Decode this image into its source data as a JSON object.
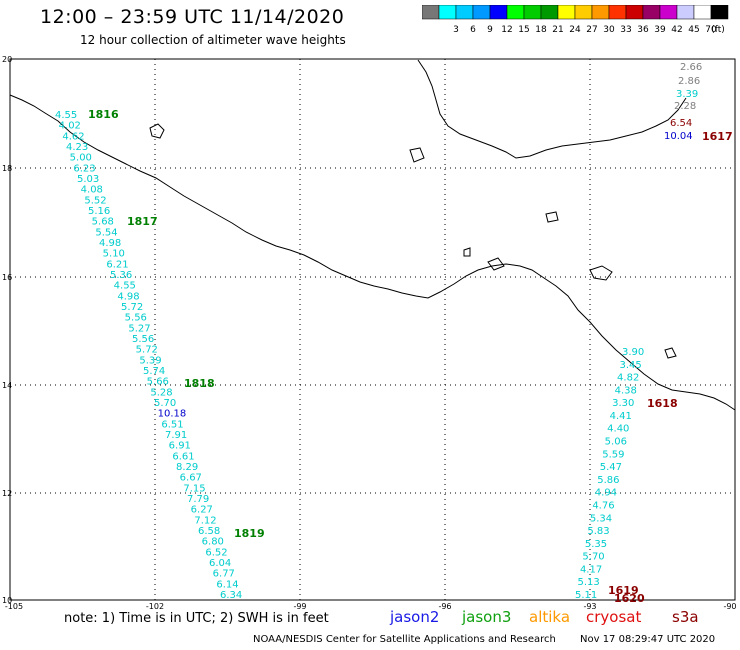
{
  "header": {
    "title": "12:00 – 23:59 UTC 11/14/2020",
    "subtitle": "12 hour collection of altimeter wave heights"
  },
  "legend": {
    "unit": "(ft)",
    "bins": [
      {
        "label": "",
        "color": "#777777"
      },
      {
        "label": "3",
        "color": "#00ffff"
      },
      {
        "label": "6",
        "color": "#00ccff"
      },
      {
        "label": "9",
        "color": "#0099ff"
      },
      {
        "label": "12",
        "color": "#0000ff"
      },
      {
        "label": "15",
        "color": "#00ff00"
      },
      {
        "label": "18",
        "color": "#00cc00"
      },
      {
        "label": "21",
        "color": "#009900"
      },
      {
        "label": "24",
        "color": "#ffff00"
      },
      {
        "label": "27",
        "color": "#ffcc00"
      },
      {
        "label": "30",
        "color": "#ff9900"
      },
      {
        "label": "33",
        "color": "#ff3300"
      },
      {
        "label": "36",
        "color": "#cc0000"
      },
      {
        "label": "39",
        "color": "#990066"
      },
      {
        "label": "42",
        "color": "#cc00cc"
      },
      {
        "label": "45",
        "color": "#ccccff"
      },
      {
        "label": "70",
        "color": "#ffffff"
      },
      {
        "label": "",
        "color": "#000000"
      }
    ]
  },
  "axes": {
    "lat_labels": [
      "20",
      "18",
      "16",
      "14",
      "12",
      "10"
    ],
    "lon_labels": [
      "-105",
      "-102",
      "-99",
      "-96",
      "-93",
      "-90"
    ]
  },
  "passes": [
    {
      "name": "1816",
      "color": "#008000"
    },
    {
      "name": "1817",
      "color": "#008000"
    },
    {
      "name": "1818",
      "color": "#008000"
    },
    {
      "name": "1819",
      "color": "#008000"
    },
    {
      "name": "1617",
      "color": "#8b0000"
    },
    {
      "name": "1618",
      "color": "#8b0000"
    },
    {
      "name": "1619",
      "color": "#8b0000"
    },
    {
      "name": "1620",
      "color": "#8b0000"
    }
  ],
  "tracks": {
    "west": [
      "4.55",
      "4.02",
      "4.62",
      "4.23",
      "5.00",
      "6.23",
      "5.03",
      "4.08",
      "5.52",
      "5.16",
      "5.68",
      "5.54",
      "4.98",
      "5.10",
      "6.21",
      "5.36",
      "4.55",
      "4.98",
      "5.72",
      "5.56",
      "5.27",
      "5.56",
      "5.72",
      "5.39",
      "5.74",
      "5.66",
      "5.28",
      "5.70",
      "10.18",
      "6.51",
      "7.91",
      "6.91",
      "6.61",
      "8.29",
      "6.67",
      "7.15",
      "7.79",
      "6.27",
      "7.12",
      "6.58",
      "6.80",
      "6.52",
      "6.04",
      "6.77",
      "6.14",
      "6.34"
    ],
    "west_colors": {
      "10.18": "#0000cc"
    },
    "northeast": [
      {
        "v": "2.66",
        "c": "#808080"
      },
      {
        "v": "2.86",
        "c": "#808080"
      },
      {
        "v": "3.39",
        "c": "#00cccc"
      },
      {
        "v": "2.28",
        "c": "#808080"
      },
      {
        "v": "6.54",
        "c": "#8b0000"
      },
      {
        "v": "10.04",
        "c": "#0000cc"
      }
    ],
    "southeast": [
      "3.90",
      "3.45",
      "4.82",
      "4.38",
      "3.30",
      "4.41",
      "4.40",
      "5.06",
      "5.59",
      "5.47",
      "5.86",
      "4.94",
      "4.76",
      "5.34",
      "5.83",
      "5.35",
      "5.70",
      "4.17",
      "5.13",
      "5.11"
    ]
  },
  "footer": {
    "note": "note: 1) Time is in UTC; 2) SWH is in feet",
    "satellites": {
      "jason2": "jason2",
      "jason3": "jason3",
      "altika": "altika",
      "cryosat": "cryosat",
      "s3a": "s3a"
    },
    "credit": "NOAA/NESDIS Center for Satellite Applications and Research",
    "timestamp": "Nov 17 08:29:47 UTC 2020"
  }
}
